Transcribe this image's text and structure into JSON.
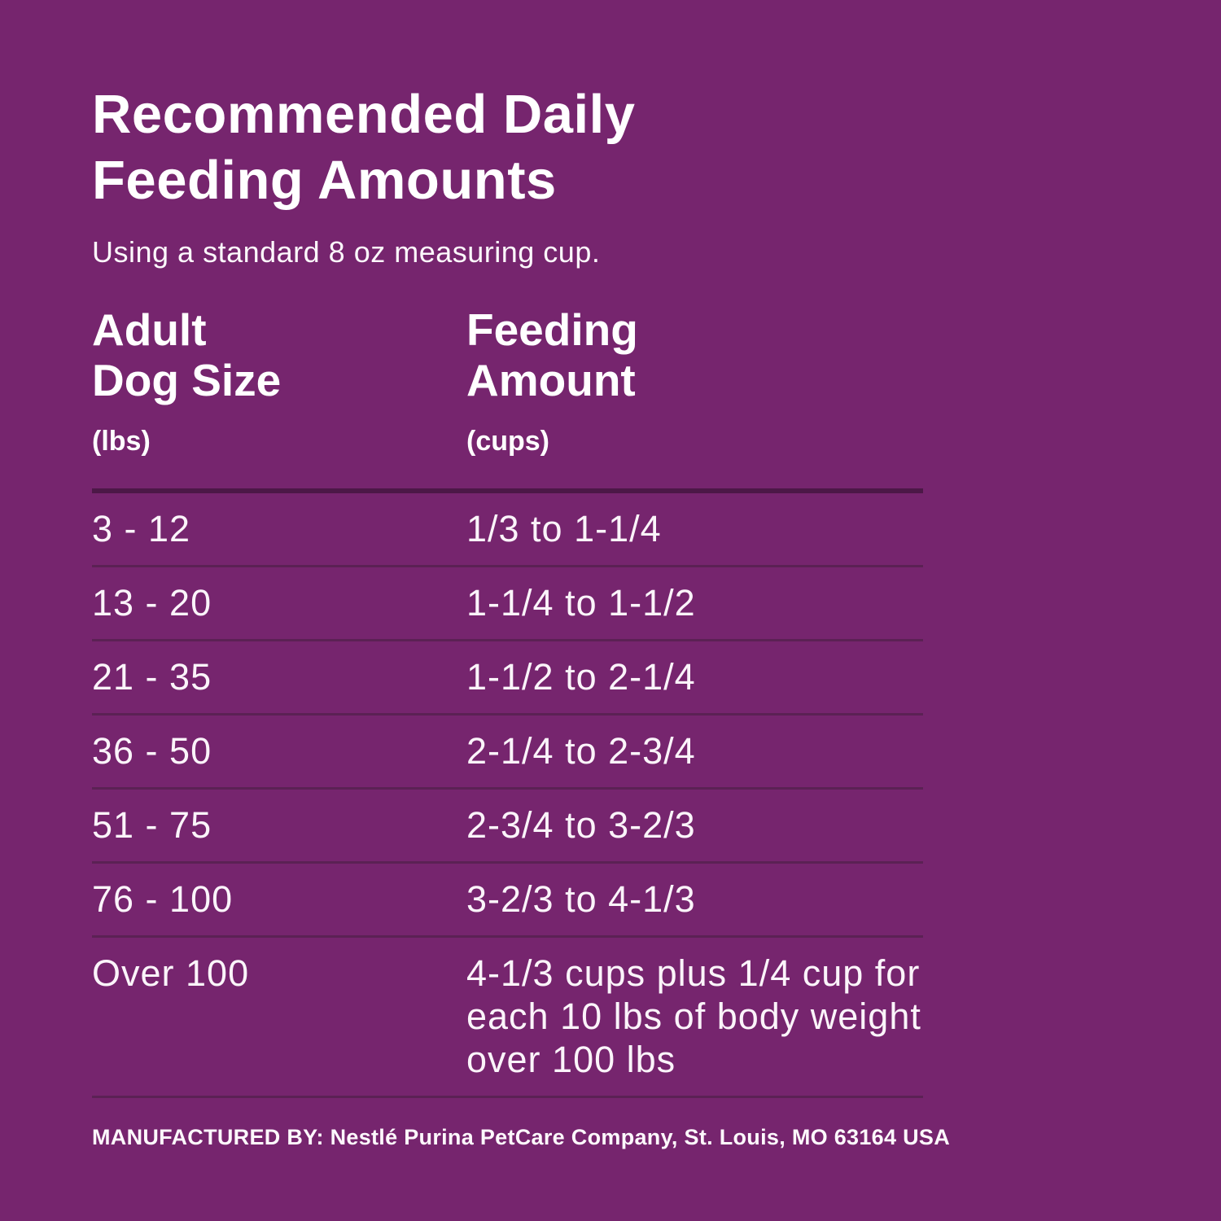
{
  "page": {
    "background_color": "#76256e",
    "text_color": "#ffffff",
    "heavy_divider_color": "#4c1847",
    "row_divider_color": "#5b2154"
  },
  "header": {
    "title": "Recommended Daily\nFeeding Amounts",
    "subtitle": "Using a standard 8 oz measuring cup."
  },
  "table": {
    "columns": [
      {
        "label": "Adult\nDog Size",
        "unit": "(lbs)"
      },
      {
        "label": "Feeding\nAmount",
        "unit": "(cups)"
      }
    ],
    "rows": [
      {
        "size": "3 - 12",
        "amount": "1/3 to 1-1/4"
      },
      {
        "size": "13 - 20",
        "amount": "1-1/4 to 1-1/2"
      },
      {
        "size": "21 - 35",
        "amount": "1-1/2 to 2-1/4"
      },
      {
        "size": "36 - 50",
        "amount": "2-1/4 to 2-3/4"
      },
      {
        "size": "51 - 75",
        "amount": "2-3/4 to 3-2/3"
      },
      {
        "size": "76 - 100",
        "amount": "3-2/3 to 4-1/3"
      },
      {
        "size": "Over 100",
        "amount": "4-1/3 cups plus 1/4 cup for each 10 lbs of body weight over 100 lbs"
      }
    ]
  },
  "footer": {
    "manufactured_by": "MANUFACTURED BY: Nestlé Purina PetCare Company, St. Louis, MO 63164 USA"
  }
}
